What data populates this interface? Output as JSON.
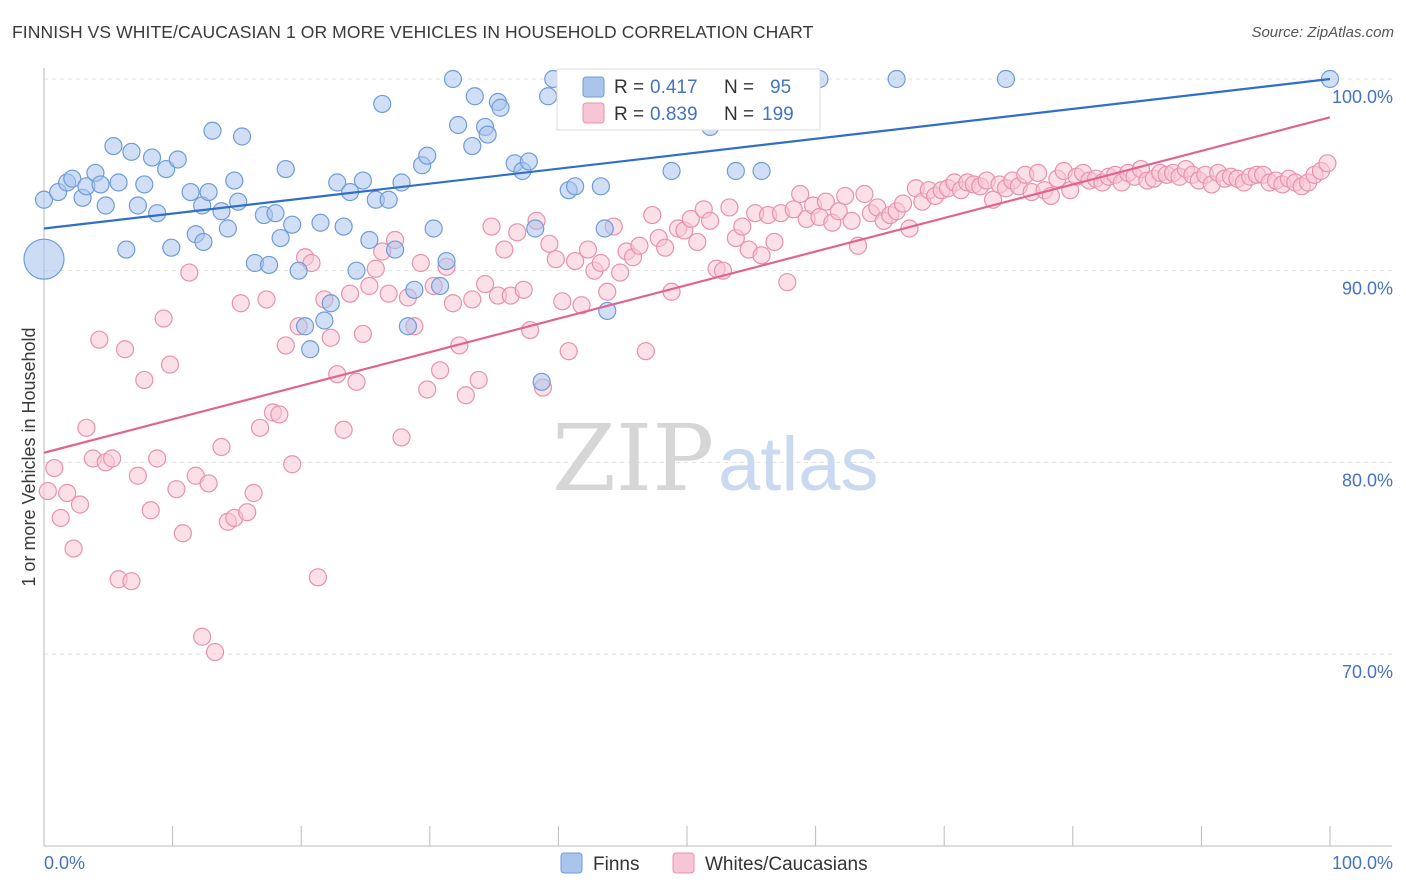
{
  "title": "FINNISH VS WHITE/CAUCASIAN 1 OR MORE VEHICLES IN HOUSEHOLD CORRELATION CHART",
  "source": "Source: ZipAtlas.com",
  "watermark": {
    "zip": "ZIP",
    "atlas": "atlas"
  },
  "colors": {
    "finns": "#6f9bd8",
    "finns_fill": "#aac4ec",
    "finns_line": "#2f6fc9",
    "whites": "#e891ad",
    "whites_fill": "#f7c6d6",
    "whites_line": "#e0648f",
    "tick_text": "#4472c4"
  },
  "chart_data": {
    "type": "scatter",
    "ylabel": "1 or more Vehicles in Household",
    "xlabel": "",
    "xlim": [
      0,
      100
    ],
    "ylim": [
      60,
      100
    ],
    "x_tick_labels": [
      "0.0%",
      "100.0%"
    ],
    "y_tick_labels": [
      "70.0%",
      "80.0%",
      "90.0%",
      "100.0%"
    ],
    "y_ticks": [
      70,
      80,
      90,
      100
    ],
    "legend_top": [
      {
        "r_label": "R =",
        "r_value": "0.417",
        "n_label": "N =",
        "n_value": "95"
      },
      {
        "r_label": "R =",
        "r_value": "0.839",
        "n_label": "N =",
        "n_value": "199"
      }
    ],
    "series": [
      {
        "name": "Finns",
        "trend": {
          "x": [
            0,
            100
          ],
          "y": [
            92.2,
            100.0
          ]
        },
        "points": [
          [
            0,
            93.7
          ],
          [
            1.1,
            94.1
          ],
          [
            1.8,
            94.6
          ],
          [
            2.2,
            94.8
          ],
          [
            3,
            93.8
          ],
          [
            3.3,
            94.4
          ],
          [
            4,
            95.1
          ],
          [
            4.4,
            94.5
          ],
          [
            4.8,
            93.4
          ],
          [
            5.4,
            96.5
          ],
          [
            5.8,
            94.6
          ],
          [
            6.4,
            91.1
          ],
          [
            6.8,
            96.2
          ],
          [
            7.3,
            93.4
          ],
          [
            7.8,
            94.5
          ],
          [
            8.4,
            95.9
          ],
          [
            8.8,
            93
          ],
          [
            9.5,
            95.3
          ],
          [
            9.9,
            91.2
          ],
          [
            10.4,
            95.8
          ],
          [
            11.4,
            94.1
          ],
          [
            11.8,
            91.9
          ],
          [
            12.3,
            93.4
          ],
          [
            12.4,
            91.5
          ],
          [
            12.8,
            94.1
          ],
          [
            13.1,
            97.3
          ],
          [
            13.8,
            93.1
          ],
          [
            14.3,
            92.2
          ],
          [
            14.8,
            94.7
          ],
          [
            15.1,
            93.6
          ],
          [
            15.4,
            97
          ],
          [
            16.4,
            90.4
          ],
          [
            17.1,
            92.9
          ],
          [
            17.5,
            90.3
          ],
          [
            18,
            93
          ],
          [
            18.4,
            91.7
          ],
          [
            18.8,
            95.3
          ],
          [
            19.3,
            92.4
          ],
          [
            19.8,
            90
          ],
          [
            20.3,
            87.1
          ],
          [
            20.7,
            85.9
          ],
          [
            21.5,
            92.5
          ],
          [
            21.8,
            87.4
          ],
          [
            22.3,
            88.3
          ],
          [
            22.8,
            94.6
          ],
          [
            23.3,
            92.3
          ],
          [
            23.8,
            94.1
          ],
          [
            24.3,
            90
          ],
          [
            24.8,
            94.7
          ],
          [
            25.3,
            91.6
          ],
          [
            25.8,
            93.7
          ],
          [
            26.3,
            98.7
          ],
          [
            26.8,
            93.7
          ],
          [
            27.3,
            91.1
          ],
          [
            27.8,
            94.6
          ],
          [
            28.3,
            87.1
          ],
          [
            28.8,
            89
          ],
          [
            29.4,
            95.5
          ],
          [
            29.8,
            96
          ],
          [
            30.3,
            92.2
          ],
          [
            30.8,
            89.2
          ],
          [
            31.3,
            90.5
          ],
          [
            31.8,
            100
          ],
          [
            32.2,
            97.6
          ],
          [
            33.3,
            96.5
          ],
          [
            33.5,
            99.1
          ],
          [
            34.3,
            97.5
          ],
          [
            34.5,
            97.1
          ],
          [
            35.3,
            98.8
          ],
          [
            35.5,
            98.5
          ],
          [
            36.6,
            95.6
          ],
          [
            37.2,
            95.2
          ],
          [
            37.7,
            95.7
          ],
          [
            38.2,
            92.2
          ],
          [
            38.7,
            84.2
          ],
          [
            39.2,
            99.1
          ],
          [
            39.6,
            100
          ],
          [
            40.8,
            94.2
          ],
          [
            41.3,
            94.4
          ],
          [
            43.3,
            94.4
          ],
          [
            43.6,
            92.2
          ],
          [
            43.8,
            87.9
          ],
          [
            45.2,
            100
          ],
          [
            46.5,
            100
          ],
          [
            48.8,
            95.2
          ],
          [
            50.5,
            100
          ],
          [
            51.8,
            97.5
          ],
          [
            52.2,
            100
          ],
          [
            53.8,
            95.2
          ],
          [
            55.8,
            95.2
          ],
          [
            56.8,
            100
          ],
          [
            58,
            100
          ],
          [
            60.3,
            100
          ],
          [
            66.3,
            100
          ],
          [
            74.8,
            100
          ],
          [
            100,
            100
          ]
        ]
      },
      {
        "name": "Whites/Caucasians",
        "trend": {
          "x": [
            0,
            100
          ],
          "y": [
            80.5,
            98.0
          ]
        },
        "points": [
          [
            0.3,
            78.5
          ],
          [
            0.8,
            79.7
          ],
          [
            1.3,
            77.1
          ],
          [
            1.8,
            78.4
          ],
          [
            2.3,
            75.5
          ],
          [
            2.8,
            77.8
          ],
          [
            3.3,
            81.8
          ],
          [
            3.8,
            80.2
          ],
          [
            4.3,
            86.4
          ],
          [
            4.8,
            80
          ],
          [
            5.3,
            80.2
          ],
          [
            5.8,
            73.9
          ],
          [
            6.3,
            85.9
          ],
          [
            6.8,
            73.8
          ],
          [
            7.3,
            79.3
          ],
          [
            7.8,
            84.3
          ],
          [
            8.3,
            77.5
          ],
          [
            8.8,
            80.2
          ],
          [
            9.3,
            87.5
          ],
          [
            9.8,
            85.1
          ],
          [
            10.3,
            78.6
          ],
          [
            10.8,
            76.3
          ],
          [
            11.3,
            89.9
          ],
          [
            11.8,
            79.3
          ],
          [
            12.3,
            70.9
          ],
          [
            12.8,
            78.9
          ],
          [
            13.3,
            70.1
          ],
          [
            13.8,
            80.8
          ],
          [
            14.3,
            76.9
          ],
          [
            14.8,
            77.1
          ],
          [
            15.3,
            88.3
          ],
          [
            15.8,
            77.4
          ],
          [
            16.3,
            78.4
          ],
          [
            16.8,
            81.8
          ],
          [
            17.3,
            88.5
          ],
          [
            17.8,
            82.6
          ],
          [
            18.3,
            82.5
          ],
          [
            18.8,
            86.1
          ],
          [
            19.3,
            79.9
          ],
          [
            19.8,
            87.1
          ],
          [
            20.3,
            90.7
          ],
          [
            20.8,
            90.4
          ],
          [
            21.3,
            74
          ],
          [
            21.8,
            88.5
          ],
          [
            22.3,
            86.5
          ],
          [
            22.8,
            84.6
          ],
          [
            23.3,
            81.7
          ],
          [
            23.8,
            88.8
          ],
          [
            24.3,
            84.2
          ],
          [
            24.8,
            86.7
          ],
          [
            25.3,
            89.2
          ],
          [
            25.8,
            90.1
          ],
          [
            26.3,
            91
          ],
          [
            26.8,
            88.8
          ],
          [
            27.3,
            91.6
          ],
          [
            27.8,
            81.3
          ],
          [
            28.3,
            88.6
          ],
          [
            28.8,
            87.1
          ],
          [
            29.3,
            90.4
          ],
          [
            29.8,
            83.8
          ],
          [
            30.3,
            89.2
          ],
          [
            30.8,
            84.8
          ],
          [
            31.3,
            90.2
          ],
          [
            31.8,
            88.3
          ],
          [
            32.3,
            86.1
          ],
          [
            32.8,
            83.5
          ],
          [
            33.3,
            88.5
          ],
          [
            33.8,
            84.3
          ],
          [
            34.3,
            89.3
          ],
          [
            34.8,
            92.3
          ],
          [
            35.3,
            88.7
          ],
          [
            35.8,
            91.1
          ],
          [
            36.3,
            88.7
          ],
          [
            36.8,
            92
          ],
          [
            37.3,
            89
          ],
          [
            37.8,
            86.9
          ],
          [
            38.3,
            92.6
          ],
          [
            38.8,
            83.9
          ],
          [
            39.3,
            91.4
          ],
          [
            39.8,
            90.6
          ],
          [
            40.3,
            88.4
          ],
          [
            40.8,
            85.8
          ],
          [
            41.3,
            90.5
          ],
          [
            41.8,
            88.2
          ],
          [
            42.3,
            91.1
          ],
          [
            42.8,
            90
          ],
          [
            43.3,
            90.4
          ],
          [
            43.8,
            88.9
          ],
          [
            44.3,
            92.3
          ],
          [
            44.8,
            89.9
          ],
          [
            45.3,
            91
          ],
          [
            45.8,
            90.7
          ],
          [
            46.3,
            91.3
          ],
          [
            46.8,
            85.8
          ],
          [
            47.3,
            92.9
          ],
          [
            47.8,
            91.7
          ],
          [
            48.3,
            91.2
          ],
          [
            48.8,
            88.9
          ],
          [
            49.3,
            92.2
          ],
          [
            49.8,
            92.1
          ],
          [
            50.3,
            92.7
          ],
          [
            50.8,
            91.5
          ],
          [
            51.3,
            93.2
          ],
          [
            51.8,
            92.6
          ],
          [
            52.3,
            90.1
          ],
          [
            52.8,
            90
          ],
          [
            53.3,
            93.3
          ],
          [
            53.8,
            91.7
          ],
          [
            54.3,
            92.3
          ],
          [
            54.8,
            91.1
          ],
          [
            55.3,
            93
          ],
          [
            55.8,
            90.8
          ],
          [
            56.3,
            92.9
          ],
          [
            56.8,
            91.5
          ],
          [
            57.3,
            93
          ],
          [
            57.8,
            89.4
          ],
          [
            58.3,
            93.2
          ],
          [
            58.8,
            94
          ],
          [
            59.3,
            92.7
          ],
          [
            59.8,
            93.4
          ],
          [
            60.3,
            92.8
          ],
          [
            60.8,
            93.6
          ],
          [
            61.3,
            92.5
          ],
          [
            61.8,
            93.1
          ],
          [
            62.3,
            93.9
          ],
          [
            62.8,
            92.6
          ],
          [
            63.3,
            91.3
          ],
          [
            63.8,
            94
          ],
          [
            64.3,
            93
          ],
          [
            64.8,
            93.3
          ],
          [
            65.3,
            92.6
          ],
          [
            65.8,
            92.9
          ],
          [
            66.3,
            93.1
          ],
          [
            66.8,
            93.5
          ],
          [
            67.3,
            92.2
          ],
          [
            67.8,
            94.3
          ],
          [
            68.3,
            93.6
          ],
          [
            68.8,
            94.2
          ],
          [
            69.3,
            93.9
          ],
          [
            69.8,
            94.2
          ],
          [
            70.3,
            94.3
          ],
          [
            70.8,
            94.6
          ],
          [
            71.3,
            94.2
          ],
          [
            71.8,
            94.6
          ],
          [
            72.3,
            94.5
          ],
          [
            72.8,
            94.4
          ],
          [
            73.3,
            94.7
          ],
          [
            73.8,
            93.7
          ],
          [
            74.3,
            94.5
          ],
          [
            74.8,
            94.3
          ],
          [
            75.3,
            94.7
          ],
          [
            75.8,
            94.4
          ],
          [
            76.3,
            95
          ],
          [
            76.8,
            94.1
          ],
          [
            77.3,
            95.1
          ],
          [
            77.8,
            94.2
          ],
          [
            78.3,
            93.9
          ],
          [
            78.8,
            94.8
          ],
          [
            79.3,
            95.2
          ],
          [
            79.8,
            94.2
          ],
          [
            80.3,
            94.9
          ],
          [
            80.8,
            95.1
          ],
          [
            81.3,
            94.7
          ],
          [
            81.8,
            94.8
          ],
          [
            82.3,
            94.6
          ],
          [
            82.8,
            94.9
          ],
          [
            83.3,
            95
          ],
          [
            83.8,
            94.6
          ],
          [
            84.3,
            95.1
          ],
          [
            84.8,
            94.9
          ],
          [
            85.3,
            95.3
          ],
          [
            85.8,
            94.7
          ],
          [
            86.3,
            94.8
          ],
          [
            86.8,
            95.1
          ],
          [
            87.3,
            95
          ],
          [
            87.8,
            95.1
          ],
          [
            88.3,
            94.9
          ],
          [
            88.8,
            95.3
          ],
          [
            89.3,
            95
          ],
          [
            89.8,
            94.7
          ],
          [
            90.3,
            95
          ],
          [
            90.8,
            94.5
          ],
          [
            91.3,
            95.1
          ],
          [
            91.8,
            94.8
          ],
          [
            92.3,
            94.9
          ],
          [
            92.8,
            94.8
          ],
          [
            93.3,
            94.6
          ],
          [
            93.8,
            94.9
          ],
          [
            94.3,
            95
          ],
          [
            94.8,
            95
          ],
          [
            95.3,
            94.6
          ],
          [
            95.8,
            94.7
          ],
          [
            96.3,
            94.5
          ],
          [
            96.8,
            94.8
          ],
          [
            97.3,
            94.6
          ],
          [
            97.8,
            94.4
          ],
          [
            98.3,
            94.6
          ],
          [
            98.8,
            95
          ],
          [
            99.3,
            95.2
          ],
          [
            99.8,
            95.6
          ]
        ]
      }
    ],
    "legend_bottom": [
      "Finns",
      "Whites/Caucasians"
    ]
  }
}
